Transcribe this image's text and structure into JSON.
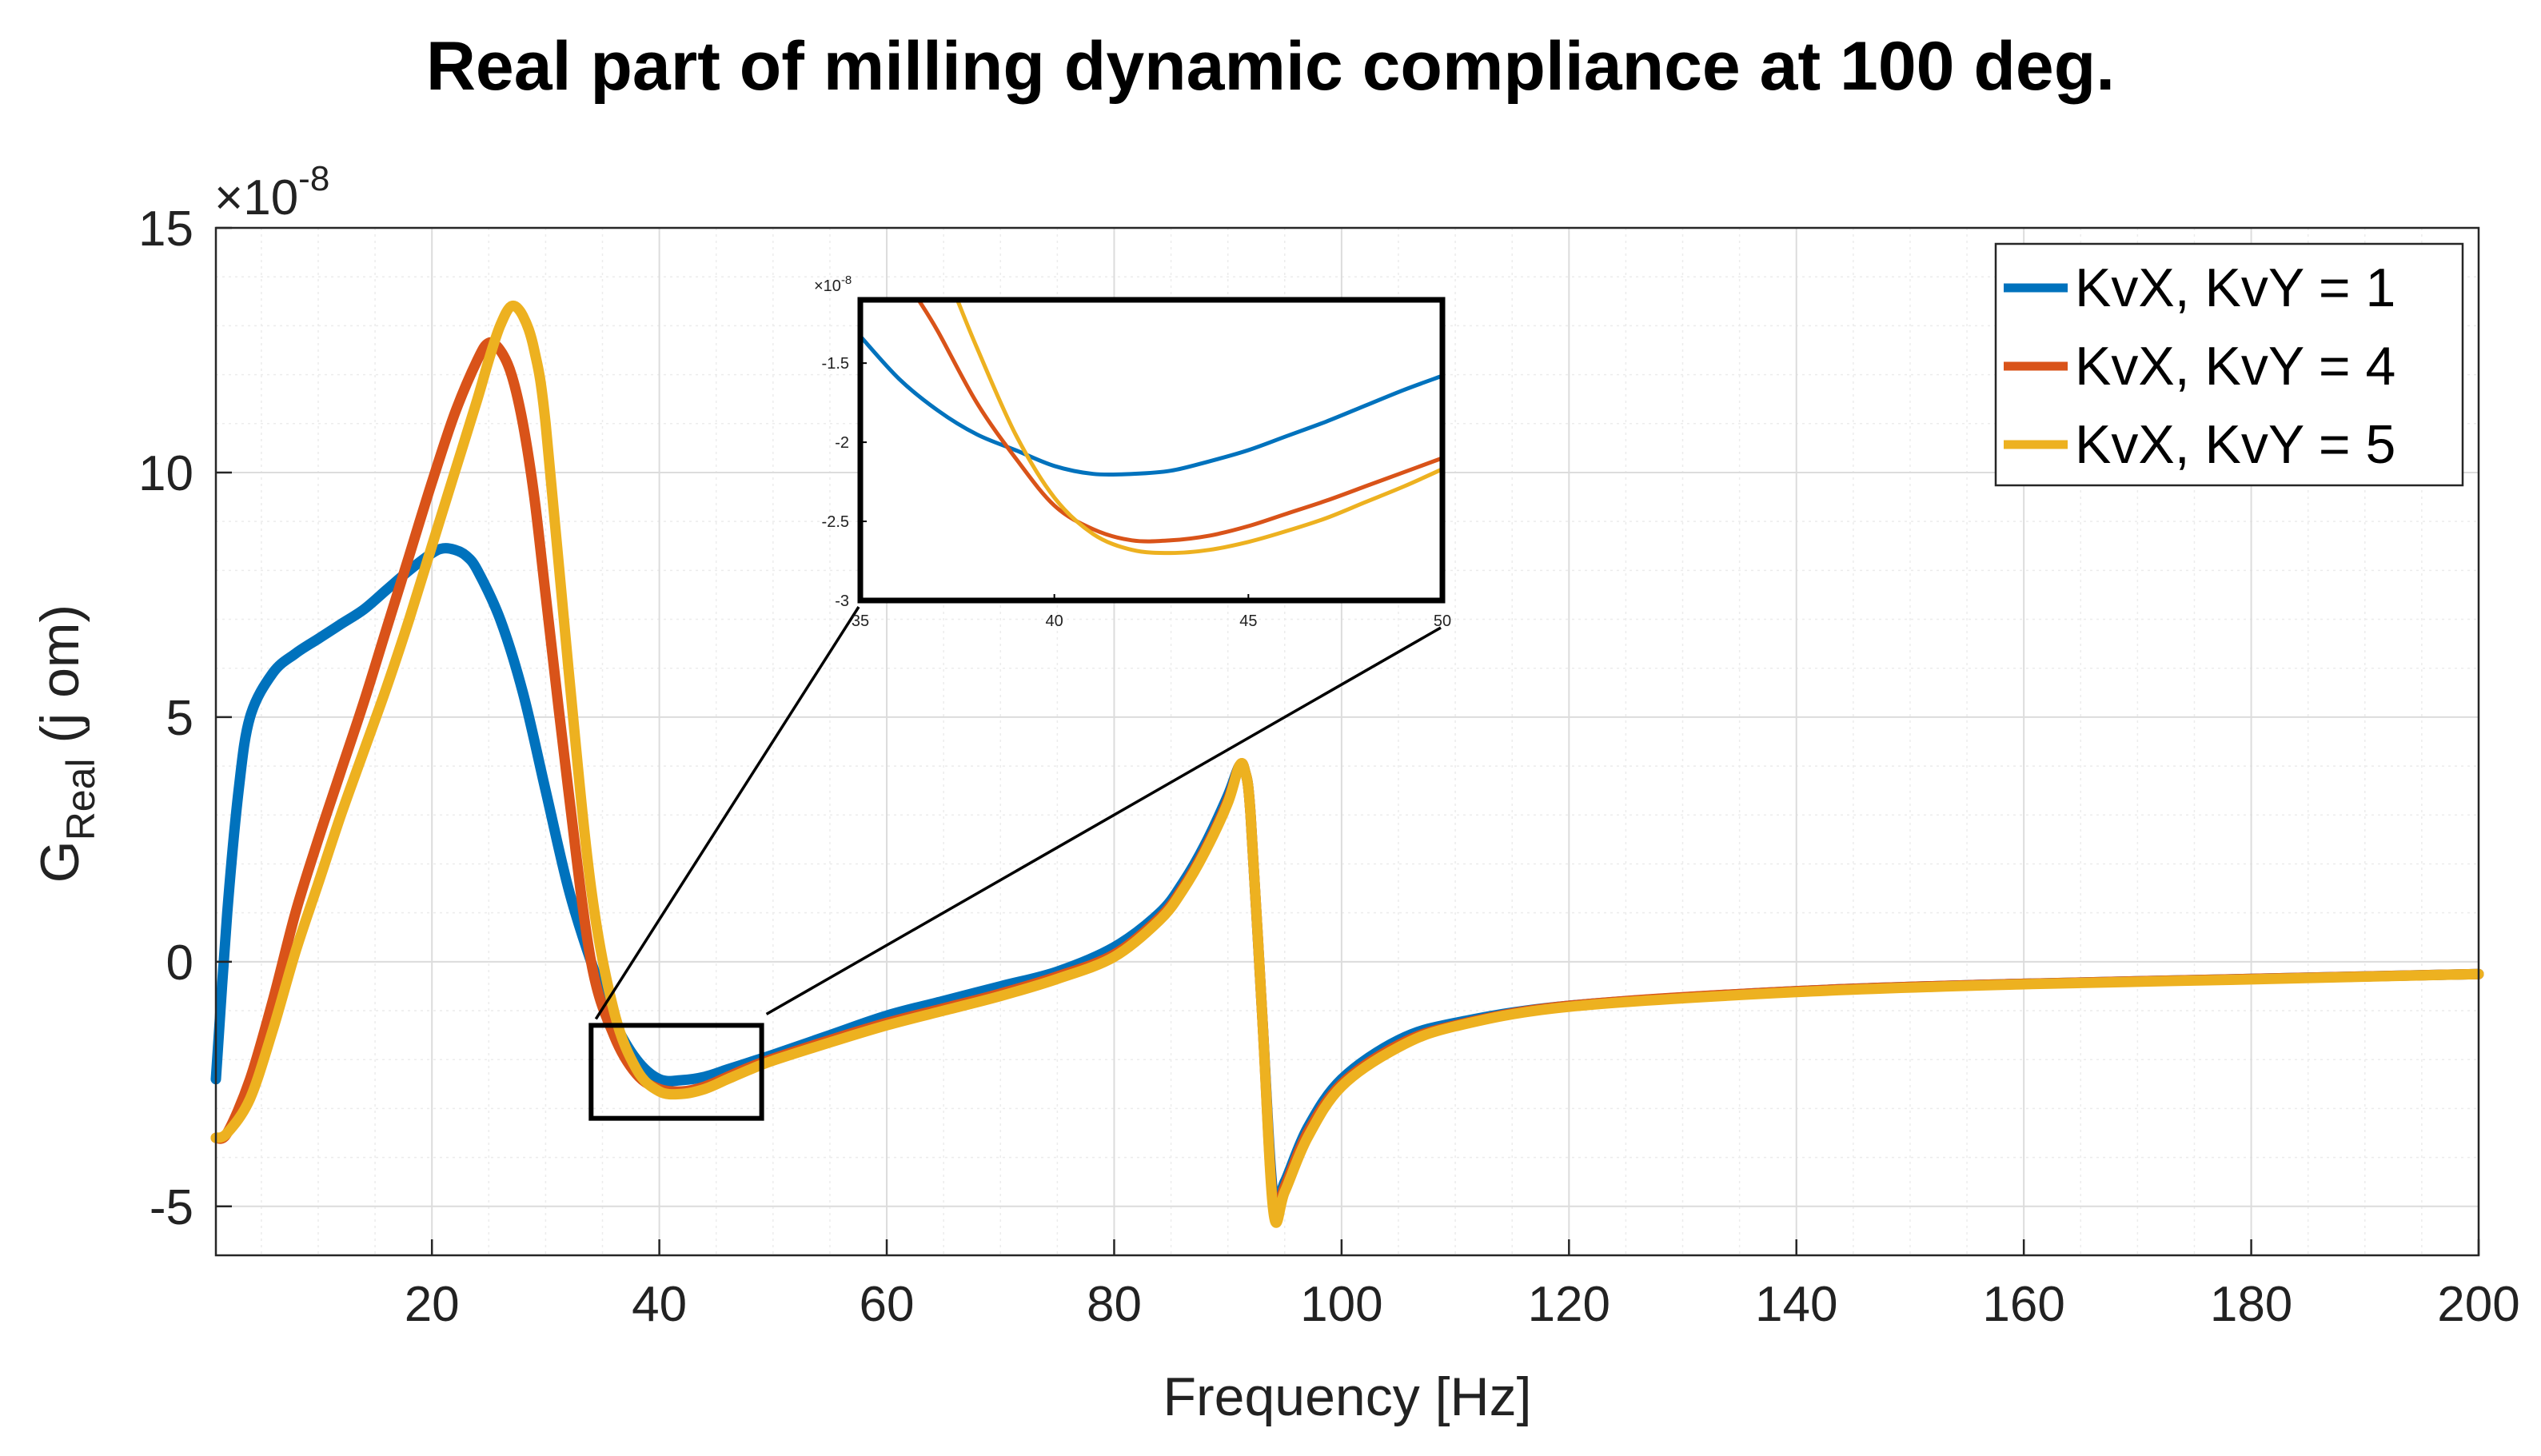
{
  "chart_data": {
    "type": "line",
    "title": "Real part of milling dynamic compliance at 100 deg.",
    "xlabel": "Frequency [Hz]",
    "ylabel_main": "G",
    "ylabel_sub": "Real",
    "ylabel_suffix": " (j om)",
    "y_exponent": "×10",
    "y_exponent_power": "-8",
    "xlim": [
      1,
      200
    ],
    "ylim": [
      -6,
      15
    ],
    "xticks": [
      20,
      40,
      60,
      80,
      100,
      120,
      140,
      160,
      180,
      200
    ],
    "yticks": [
      -5,
      0,
      5,
      10,
      15
    ],
    "grid": true,
    "minor_grid": true,
    "legend_position": "top-right",
    "series": [
      {
        "name": "KvX, KvY = 1",
        "color": "#0072BD",
        "points": [
          [
            1,
            -2.4
          ],
          [
            2,
            1.0
          ],
          [
            3,
            3.5
          ],
          [
            4,
            5.0
          ],
          [
            6,
            5.9
          ],
          [
            8,
            6.3
          ],
          [
            10,
            6.6
          ],
          [
            12,
            6.9
          ],
          [
            14,
            7.2
          ],
          [
            16,
            7.6
          ],
          [
            18,
            8.0
          ],
          [
            20,
            8.35
          ],
          [
            21,
            8.45
          ],
          [
            22,
            8.42
          ],
          [
            23,
            8.3
          ],
          [
            24,
            8.0
          ],
          [
            26,
            7.0
          ],
          [
            28,
            5.5
          ],
          [
            30,
            3.5
          ],
          [
            32,
            1.5
          ],
          [
            34,
            0
          ],
          [
            36,
            -1.2
          ],
          [
            38,
            -2.0
          ],
          [
            40,
            -2.4
          ],
          [
            42,
            -2.42
          ],
          [
            44,
            -2.35
          ],
          [
            46,
            -2.2
          ],
          [
            48,
            -2.05
          ],
          [
            50,
            -1.9
          ],
          [
            55,
            -1.5
          ],
          [
            60,
            -1.1
          ],
          [
            65,
            -0.8
          ],
          [
            70,
            -0.5
          ],
          [
            75,
            -0.2
          ],
          [
            80,
            0.3
          ],
          [
            84,
            1.0
          ],
          [
            86,
            1.6
          ],
          [
            88,
            2.4
          ],
          [
            90,
            3.4
          ],
          [
            91,
            4.0
          ],
          [
            91.5,
            3.9
          ],
          [
            92,
            3.0
          ],
          [
            93,
            -1.0
          ],
          [
            94,
            -4.8
          ],
          [
            95,
            -4.5
          ],
          [
            97,
            -3.4
          ],
          [
            100,
            -2.4
          ],
          [
            105,
            -1.6
          ],
          [
            110,
            -1.25
          ],
          [
            120,
            -0.9
          ],
          [
            140,
            -0.6
          ],
          [
            160,
            -0.45
          ],
          [
            180,
            -0.35
          ],
          [
            200,
            -0.25
          ]
        ],
        "zoom_points": [
          [
            35,
            -1.33
          ],
          [
            36,
            -1.6
          ],
          [
            37,
            -1.8
          ],
          [
            38,
            -1.95
          ],
          [
            39,
            -2.05
          ],
          [
            40,
            -2.15
          ],
          [
            41,
            -2.2
          ],
          [
            42,
            -2.2
          ],
          [
            43,
            -2.18
          ],
          [
            44,
            -2.12
          ],
          [
            45,
            -2.05
          ],
          [
            46,
            -1.96
          ],
          [
            47,
            -1.87
          ],
          [
            48,
            -1.77
          ],
          [
            49,
            -1.67
          ],
          [
            50,
            -1.58
          ]
        ]
      },
      {
        "name": "KvX, KvY = 4",
        "color": "#D95319",
        "points": [
          [
            1,
            -3.6
          ],
          [
            2,
            -3.5
          ],
          [
            4,
            -2.4
          ],
          [
            6,
            -0.8
          ],
          [
            8,
            1.0
          ],
          [
            10,
            2.5
          ],
          [
            12,
            3.9
          ],
          [
            14,
            5.3
          ],
          [
            16,
            6.8
          ],
          [
            18,
            8.3
          ],
          [
            20,
            9.8
          ],
          [
            22,
            11.2
          ],
          [
            24,
            12.3
          ],
          [
            25,
            12.65
          ],
          [
            26,
            12.5
          ],
          [
            27,
            12.0
          ],
          [
            28,
            11.0
          ],
          [
            29,
            9.5
          ],
          [
            30,
            7.5
          ],
          [
            32,
            3.5
          ],
          [
            34,
            0
          ],
          [
            36,
            -1.5
          ],
          [
            38,
            -2.3
          ],
          [
            40,
            -2.6
          ],
          [
            42,
            -2.65
          ],
          [
            44,
            -2.55
          ],
          [
            46,
            -2.35
          ],
          [
            48,
            -2.15
          ],
          [
            50,
            -1.98
          ],
          [
            55,
            -1.6
          ],
          [
            60,
            -1.25
          ],
          [
            65,
            -0.95
          ],
          [
            70,
            -0.65
          ],
          [
            75,
            -0.3
          ],
          [
            80,
            0.15
          ],
          [
            84,
            0.9
          ],
          [
            86,
            1.5
          ],
          [
            88,
            2.3
          ],
          [
            90,
            3.3
          ],
          [
            91,
            4.0
          ],
          [
            91.5,
            3.9
          ],
          [
            92,
            3.0
          ],
          [
            93,
            -1.0
          ],
          [
            94,
            -5.0
          ],
          [
            95,
            -4.6
          ],
          [
            97,
            -3.5
          ],
          [
            100,
            -2.5
          ],
          [
            105,
            -1.7
          ],
          [
            110,
            -1.3
          ],
          [
            120,
            -0.9
          ],
          [
            140,
            -0.6
          ],
          [
            160,
            -0.45
          ],
          [
            180,
            -0.35
          ],
          [
            200,
            -0.25
          ]
        ],
        "zoom_points": [
          [
            36.5,
            -1.1
          ],
          [
            37,
            -1.3
          ],
          [
            38,
            -1.75
          ],
          [
            39,
            -2.1
          ],
          [
            40,
            -2.4
          ],
          [
            41,
            -2.55
          ],
          [
            42,
            -2.62
          ],
          [
            43,
            -2.62
          ],
          [
            44,
            -2.59
          ],
          [
            45,
            -2.53
          ],
          [
            46,
            -2.45
          ],
          [
            47,
            -2.37
          ],
          [
            48,
            -2.28
          ],
          [
            49,
            -2.19
          ],
          [
            50,
            -2.1
          ]
        ]
      },
      {
        "name": "KvX, KvY = 5",
        "color": "#EDB120",
        "points": [
          [
            1,
            -3.6
          ],
          [
            2,
            -3.5
          ],
          [
            4,
            -2.8
          ],
          [
            6,
            -1.4
          ],
          [
            8,
            0.2
          ],
          [
            10,
            1.6
          ],
          [
            12,
            3.0
          ],
          [
            14,
            4.3
          ],
          [
            16,
            5.6
          ],
          [
            18,
            7.0
          ],
          [
            20,
            8.5
          ],
          [
            22,
            10.0
          ],
          [
            24,
            11.5
          ],
          [
            25,
            12.3
          ],
          [
            26,
            13.0
          ],
          [
            27,
            13.4
          ],
          [
            28,
            13.2
          ],
          [
            29,
            12.5
          ],
          [
            30,
            11.0
          ],
          [
            32,
            6.0
          ],
          [
            34,
            1.5
          ],
          [
            36,
            -1.0
          ],
          [
            38,
            -2.2
          ],
          [
            40,
            -2.65
          ],
          [
            42,
            -2.7
          ],
          [
            44,
            -2.6
          ],
          [
            46,
            -2.4
          ],
          [
            48,
            -2.2
          ],
          [
            50,
            -2.02
          ],
          [
            55,
            -1.65
          ],
          [
            60,
            -1.3
          ],
          [
            65,
            -1.0
          ],
          [
            70,
            -0.7
          ],
          [
            75,
            -0.35
          ],
          [
            80,
            0.1
          ],
          [
            84,
            0.85
          ],
          [
            86,
            1.45
          ],
          [
            88,
            2.25
          ],
          [
            90,
            3.25
          ],
          [
            91,
            4.0
          ],
          [
            91.5,
            3.9
          ],
          [
            92,
            3.0
          ],
          [
            93,
            -1.0
          ],
          [
            94,
            -5.1
          ],
          [
            95,
            -4.7
          ],
          [
            97,
            -3.6
          ],
          [
            100,
            -2.55
          ],
          [
            105,
            -1.75
          ],
          [
            110,
            -1.32
          ],
          [
            120,
            -0.92
          ],
          [
            140,
            -0.62
          ],
          [
            160,
            -0.46
          ],
          [
            180,
            -0.36
          ],
          [
            200,
            -0.25
          ]
        ],
        "zoom_points": [
          [
            37.5,
            -1.1
          ],
          [
            38,
            -1.4
          ],
          [
            39,
            -1.95
          ],
          [
            40,
            -2.35
          ],
          [
            41,
            -2.58
          ],
          [
            42,
            -2.68
          ],
          [
            43,
            -2.7
          ],
          [
            44,
            -2.68
          ],
          [
            45,
            -2.63
          ],
          [
            46,
            -2.56
          ],
          [
            47,
            -2.48
          ],
          [
            48,
            -2.38
          ],
          [
            49,
            -2.28
          ],
          [
            50,
            -2.17
          ]
        ]
      }
    ],
    "inset": {
      "xlim": [
        35,
        50
      ],
      "ylim": [
        -3,
        -1.1
      ],
      "xticks": [
        35,
        40,
        45,
        50
      ],
      "yticks": [
        -1.5,
        -2,
        -2.5,
        -3
      ],
      "xtick_labels": [
        "35",
        "40",
        "45",
        "50"
      ],
      "ytick_labels": [
        "-1.5",
        "-2",
        "-2.5",
        "-3"
      ],
      "y_exponent": "×10",
      "y_exponent_power": "-8",
      "source_box_x": [
        34,
        49
      ],
      "source_box_y": [
        -3.2,
        -1.3
      ]
    }
  }
}
